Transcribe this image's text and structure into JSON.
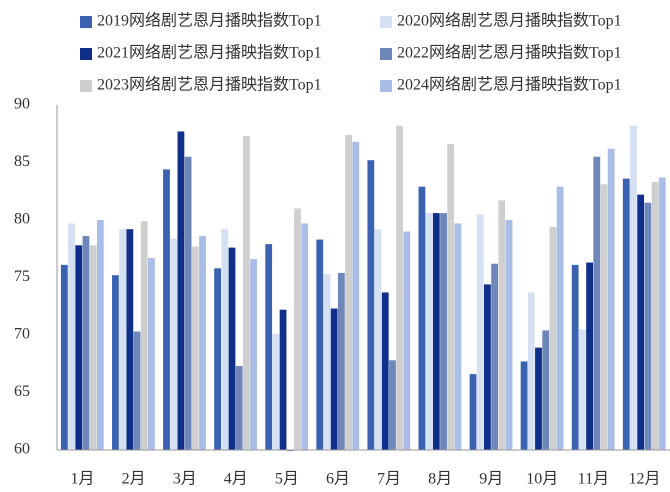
{
  "chart_data": {
    "type": "bar",
    "categories": [
      "1月",
      "2月",
      "3月",
      "4月",
      "5月",
      "6月",
      "7月",
      "8月",
      "9月",
      "10月",
      "11月",
      "12月"
    ],
    "series": [
      {
        "name": "2019网络剧艺恩月播映指数Top1",
        "color": "#3a62b0",
        "values": [
          76.1,
          75.2,
          84.4,
          75.8,
          77.9,
          78.3,
          85.2,
          82.9,
          66.6,
          67.7,
          76.1,
          83.6
        ]
      },
      {
        "name": "2020网络剧艺恩月播映指数Top1",
        "color": "#d5e0f2",
        "values": [
          79.7,
          79.2,
          78.4,
          79.2,
          70.1,
          75.3,
          79.2,
          80.6,
          80.5,
          73.7,
          70.5,
          88.2
        ]
      },
      {
        "name": "2021网络剧艺恩月播映指数Top1",
        "color": "#0f2f8a",
        "values": [
          77.8,
          79.2,
          87.7,
          77.6,
          72.2,
          72.3,
          73.7,
          80.6,
          74.4,
          68.9,
          76.3,
          82.2
        ]
      },
      {
        "name": "2022网络剧艺恩月播映指数Top1",
        "color": "#6f86b8",
        "values": [
          78.6,
          70.3,
          85.5,
          67.3,
          59.9,
          75.4,
          67.8,
          80.6,
          76.2,
          70.4,
          85.5,
          81.5
        ]
      },
      {
        "name": "2023网络剧艺恩月播映指数Top1",
        "color": "#cfcfcf",
        "values": [
          77.8,
          79.9,
          77.7,
          87.3,
          81.0,
          87.4,
          88.2,
          86.6,
          81.7,
          79.4,
          83.1,
          83.3
        ]
      },
      {
        "name": "2024网络剧艺恩月播映指数Top1",
        "color": "#a9bde6",
        "values": [
          80.0,
          76.7,
          78.6,
          76.6,
          79.7,
          86.8,
          79.0,
          79.7,
          80.0,
          82.9,
          86.2,
          83.7
        ]
      }
    ],
    "ylim": [
      60,
      90
    ],
    "yticks": [
      60,
      65,
      70,
      75,
      80,
      85,
      90
    ],
    "grid": false
  }
}
